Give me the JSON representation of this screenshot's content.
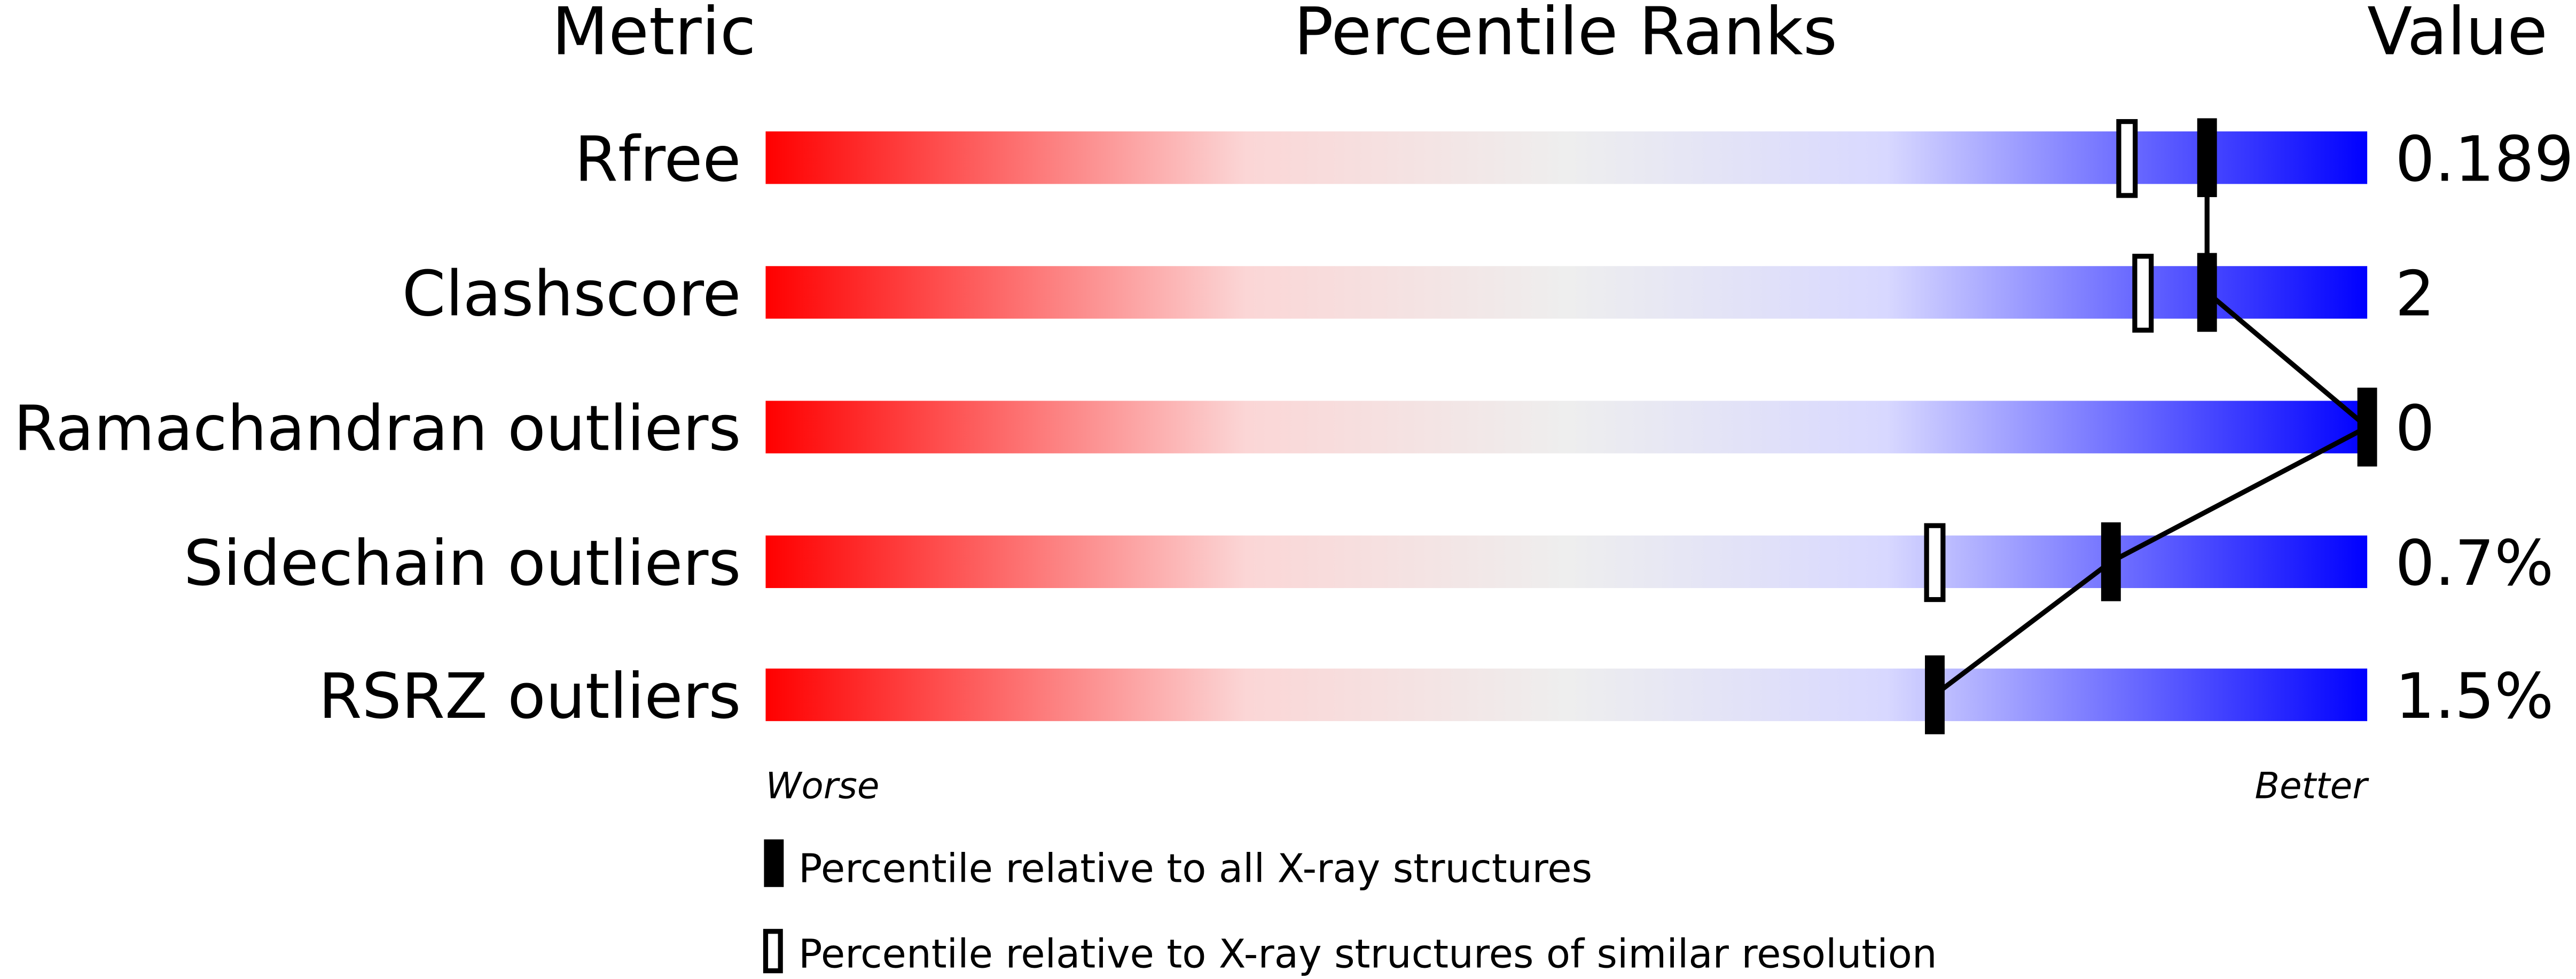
{
  "chart_data": {
    "type": "table",
    "headers": {
      "metric": "Metric",
      "percentile": "Percentile Ranks",
      "value": "Value"
    },
    "percentile_range": [
      0,
      100
    ],
    "rows": [
      {
        "metric": "Rfree",
        "value": "0.189",
        "percentile_all": 90,
        "percentile_similar": 85
      },
      {
        "metric": "Clashscore",
        "value": "2",
        "percentile_all": 90,
        "percentile_similar": 86
      },
      {
        "metric": "Ramachandran outliers",
        "value": "0",
        "percentile_all": 100,
        "percentile_similar": null
      },
      {
        "metric": "Sidechain outliers",
        "value": "0.7%",
        "percentile_all": 84,
        "percentile_similar": 73
      },
      {
        "metric": "RSRZ outliers",
        "value": "1.5%",
        "percentile_all": 73,
        "percentile_similar": null
      }
    ],
    "axis_labels": {
      "worse": "Worse",
      "better": "Better"
    },
    "legend": [
      {
        "marker": "filled",
        "label": "Percentile relative to all X-ray structures"
      },
      {
        "marker": "open",
        "label": "Percentile relative to X-ray structures of similar resolution"
      }
    ],
    "colors": {
      "worse": "#ff0000",
      "middle": "#eeeeee",
      "light_blue": "#d8d8ff",
      "better": "#0000ff",
      "marker": "#000000"
    }
  }
}
